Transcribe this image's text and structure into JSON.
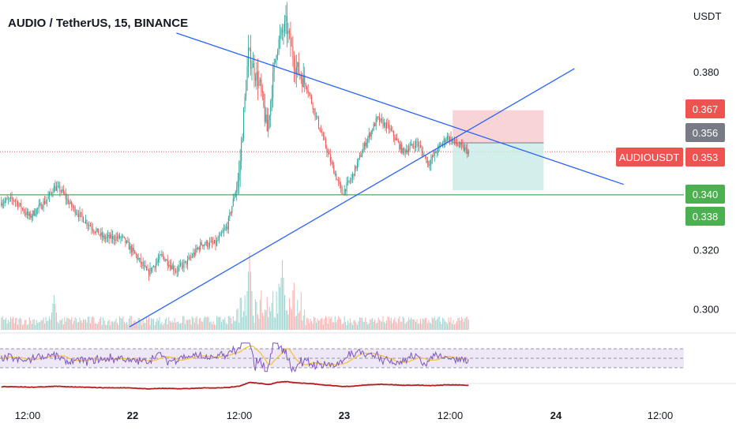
{
  "header": {
    "title": "AUDIO / TetherUS, 15, BINANCE",
    "unit": "USDT"
  },
  "colors": {
    "up": "#26a69a",
    "down": "#ef5350",
    "trendline": "#2962ff",
    "support": "#4caf50",
    "rsi_line": "#7e57c2",
    "rsi_ma": "#f5c242",
    "rsi_band": "#ede7f6",
    "lower_line": "#b71c1c",
    "stop_zone": "#f8c9cc",
    "target_zone": "#c8ebe6"
  },
  "chart_data": {
    "type": "candlestick",
    "symbol": "AUDIOUSDT",
    "interval": "15",
    "exchange": "BINANCE",
    "price_axis": {
      "unit": "USDT",
      "ticks": [
        0.3,
        0.32,
        0.38
      ],
      "range": [
        0.293,
        0.402
      ]
    },
    "time_axis": {
      "ticks": [
        "12:00",
        "22",
        "12:00",
        "23",
        "12:00",
        "24",
        "12:00"
      ]
    },
    "price_path_keypoints": [
      {
        "t": 0,
        "p": 0.336
      },
      {
        "t": 12,
        "p": 0.337
      },
      {
        "t": 25,
        "p": 0.331
      },
      {
        "t": 40,
        "p": 0.337
      },
      {
        "t": 46,
        "p": 0.341
      },
      {
        "t": 52,
        "p": 0.34
      },
      {
        "t": 60,
        "p": 0.335
      },
      {
        "t": 72,
        "p": 0.33
      },
      {
        "t": 88,
        "p": 0.324
      },
      {
        "t": 104,
        "p": 0.324
      },
      {
        "t": 116,
        "p": 0.318
      },
      {
        "t": 126,
        "p": 0.312
      },
      {
        "t": 138,
        "p": 0.318
      },
      {
        "t": 150,
        "p": 0.313
      },
      {
        "t": 160,
        "p": 0.316
      },
      {
        "t": 172,
        "p": 0.322
      },
      {
        "t": 184,
        "p": 0.322
      },
      {
        "t": 194,
        "p": 0.328
      },
      {
        "t": 204,
        "p": 0.345
      },
      {
        "t": 212,
        "p": 0.386
      },
      {
        "t": 222,
        "p": 0.375
      },
      {
        "t": 228,
        "p": 0.36
      },
      {
        "t": 236,
        "p": 0.388
      },
      {
        "t": 244,
        "p": 0.396
      },
      {
        "t": 252,
        "p": 0.382
      },
      {
        "t": 262,
        "p": 0.375
      },
      {
        "t": 272,
        "p": 0.362
      },
      {
        "t": 282,
        "p": 0.35
      },
      {
        "t": 292,
        "p": 0.339
      },
      {
        "t": 300,
        "p": 0.344
      },
      {
        "t": 312,
        "p": 0.356
      },
      {
        "t": 322,
        "p": 0.364
      },
      {
        "t": 332,
        "p": 0.361
      },
      {
        "t": 344,
        "p": 0.353
      },
      {
        "t": 356,
        "p": 0.356
      },
      {
        "t": 366,
        "p": 0.349
      },
      {
        "t": 374,
        "p": 0.354
      },
      {
        "t": 382,
        "p": 0.358
      },
      {
        "t": 392,
        "p": 0.355
      },
      {
        "t": 400,
        "p": 0.353
      }
    ],
    "last_price": 0.353,
    "price_tags": [
      {
        "label": "0.367",
        "value": 0.367,
        "color": "#ef5350"
      },
      {
        "label": "0.356",
        "value": 0.356,
        "color": "#787b86"
      },
      {
        "label": "0.353",
        "value": 0.353,
        "color": "#ef5350"
      },
      {
        "label": "0.340",
        "value": 0.34,
        "color": "#4caf50"
      },
      {
        "label": "0.338",
        "value": 0.338,
        "color": "#4caf50"
      }
    ],
    "drawings": {
      "resistance_line": {
        "from": {
          "t": 150,
          "p": 0.393
        },
        "to": {
          "t": 532,
          "p": 0.342
        }
      },
      "support_line": {
        "from": {
          "t": 110,
          "p": 0.294
        },
        "to": {
          "t": 490,
          "p": 0.381
        }
      },
      "horizontal_support": 0.3385,
      "position": {
        "entry": 0.356,
        "stop": 0.367,
        "target": 0.34,
        "from_t": 386,
        "to_t": 430
      }
    },
    "rsi_panel": {
      "bands": [
        70,
        30
      ],
      "mid": 50
    },
    "volume_spikes": [
      {
        "t": 45,
        "v": 0.45
      },
      {
        "t": 212,
        "v": 1.0
      },
      {
        "t": 240,
        "v": 0.9
      }
    ]
  }
}
